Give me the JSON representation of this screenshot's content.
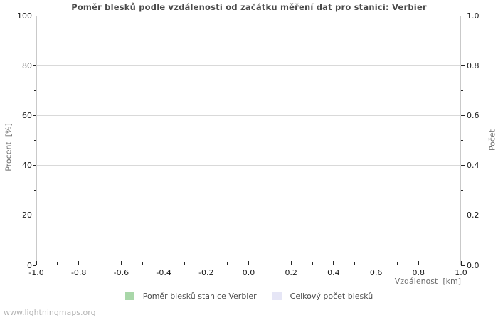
{
  "watermark": "www.lightningmaps.org",
  "chart_data": {
    "type": "bar",
    "title": "Poměr blesků podle vzdálenosti od začátku měření dat pro stanici: Verbier",
    "xlabel": "Vzdálenost  [km]",
    "ylabel_left": "Procent  [%]",
    "ylabel_right": "Počet",
    "xlim": [
      -1.0,
      1.0
    ],
    "ylim_left": [
      0,
      100
    ],
    "ylim_right": [
      0.0,
      1.0
    ],
    "x_ticks": [
      "-1.0",
      "-0.8",
      "-0.6",
      "-0.4",
      "-0.2",
      "0.0",
      "0.2",
      "0.4",
      "0.6",
      "0.8",
      "1.0"
    ],
    "y_ticks_left": [
      "0",
      "20",
      "40",
      "60",
      "80",
      "100"
    ],
    "y_ticks_right": [
      "0.0",
      "0.2",
      "0.4",
      "0.6",
      "0.8",
      "1.0"
    ],
    "grid": "horizontal-major-only",
    "legend_position": "bottom-center",
    "series": [
      {
        "name": "Poměr blesků stanice Verbier",
        "color": "#a9d7a9",
        "axis": "left",
        "x": [],
        "values": []
      },
      {
        "name": "Celkový počet blesků",
        "color": "#e6e6f6",
        "axis": "right",
        "x": [],
        "values": []
      }
    ]
  }
}
